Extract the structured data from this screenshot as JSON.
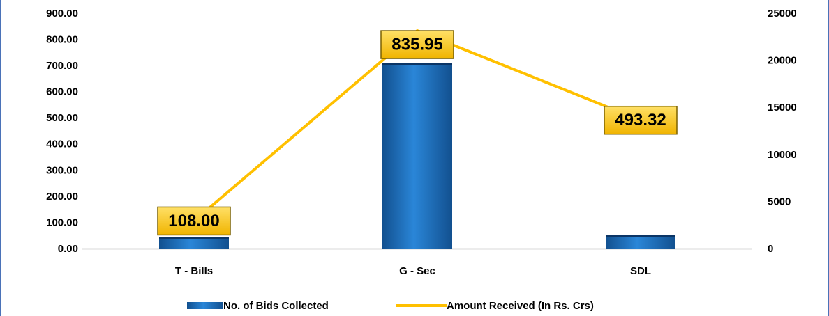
{
  "chart_data": {
    "type": "bar_line",
    "categories": [
      "T - Bills",
      "G - Sec",
      "SDL"
    ],
    "series": [
      {
        "name": "No. of Bids Collected",
        "color": "#1f6fc0",
        "values": [
          1330,
          19750,
          1480
        ],
        "axis": "y2"
      },
      {
        "name": "Amount Received (In Rs. Crs)",
        "color": "#ffc000",
        "values": [
          108,
          835.95,
          493.32
        ],
        "value_labels": [
          "108.00",
          "835.95",
          "493.32"
        ],
        "axis": "y"
      }
    ],
    "ylim": [
      0,
      900
    ],
    "yticks": [
      {
        "value": 0,
        "label": "0.00"
      },
      {
        "value": 100,
        "label": "100.00"
      },
      {
        "value": 200,
        "label": "200.00"
      },
      {
        "value": 300,
        "label": "300.00"
      },
      {
        "value": 400,
        "label": "400.00"
      },
      {
        "value": 500,
        "label": "500.00"
      },
      {
        "value": 600,
        "label": "600.00"
      },
      {
        "value": 700,
        "label": "700.00"
      },
      {
        "value": 800,
        "label": "800.00"
      },
      {
        "value": 900,
        "label": "900.00"
      }
    ],
    "y2lim": [
      0,
      25000
    ],
    "y2ticks": [
      0,
      5000,
      10000,
      15000,
      20000,
      25000
    ],
    "legend": "bottom"
  }
}
